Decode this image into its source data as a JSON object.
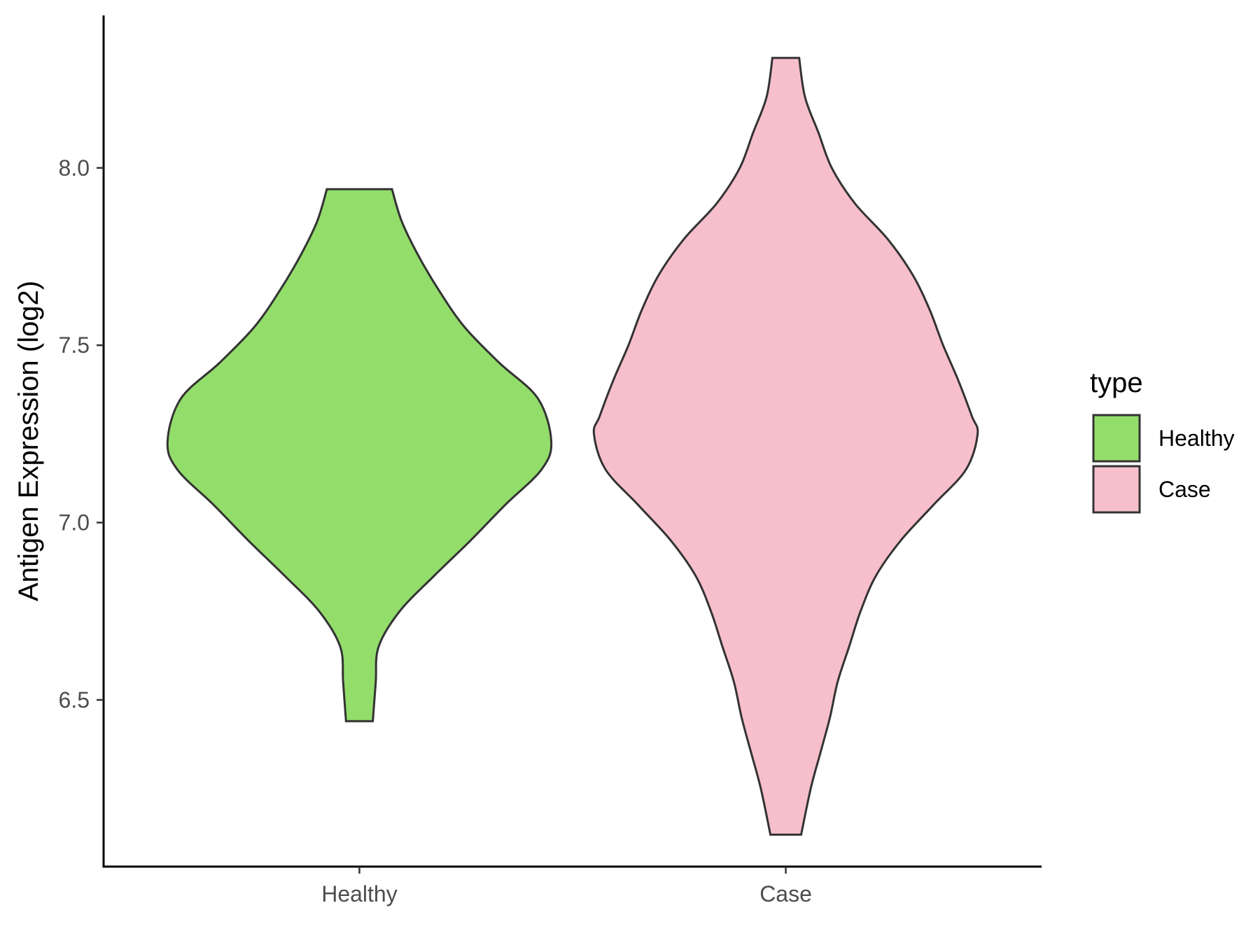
{
  "chart_data": {
    "type": "violin",
    "title": "",
    "xlabel": "",
    "ylabel": "Antigen Expression (log2)",
    "categories": [
      "Healthy",
      "Case"
    ],
    "ylim": [
      6.03,
      8.43
    ],
    "yticks": [
      6.5,
      7.0,
      7.5,
      8.0
    ],
    "ytick_labels": [
      "6.5",
      "7.0",
      "7.5",
      "8.0"
    ],
    "grid": false,
    "legend": {
      "title": "type",
      "position": "right",
      "items": [
        {
          "label": "Healthy",
          "color": "#93dd6b"
        },
        {
          "label": "Case",
          "color": "#f7bfcb"
        }
      ]
    },
    "series": [
      {
        "category": "Healthy",
        "color": "#93dd6b",
        "min": 6.44,
        "max": 7.94,
        "density_profile": [
          [
            7.94,
            0.17
          ],
          [
            7.85,
            0.22
          ],
          [
            7.75,
            0.31
          ],
          [
            7.65,
            0.42
          ],
          [
            7.55,
            0.55
          ],
          [
            7.45,
            0.73
          ],
          [
            7.35,
            0.93
          ],
          [
            7.23,
            1.0
          ],
          [
            7.15,
            0.95
          ],
          [
            7.05,
            0.76
          ],
          [
            6.95,
            0.58
          ],
          [
            6.85,
            0.39
          ],
          [
            6.75,
            0.21
          ],
          [
            6.65,
            0.1
          ],
          [
            6.55,
            0.085
          ],
          [
            6.44,
            0.07
          ]
        ]
      },
      {
        "category": "Case",
        "color": "#f7bfcb",
        "min": 6.12,
        "max": 8.31,
        "density_profile": [
          [
            8.31,
            0.07
          ],
          [
            8.2,
            0.1
          ],
          [
            8.1,
            0.17
          ],
          [
            8.0,
            0.24
          ],
          [
            7.9,
            0.36
          ],
          [
            7.8,
            0.53
          ],
          [
            7.7,
            0.66
          ],
          [
            7.6,
            0.75
          ],
          [
            7.5,
            0.82
          ],
          [
            7.4,
            0.9
          ],
          [
            7.3,
            0.97
          ],
          [
            7.25,
            1.0
          ],
          [
            7.15,
            0.94
          ],
          [
            7.05,
            0.77
          ],
          [
            6.95,
            0.6
          ],
          [
            6.85,
            0.47
          ],
          [
            6.75,
            0.39
          ],
          [
            6.65,
            0.33
          ],
          [
            6.55,
            0.27
          ],
          [
            6.45,
            0.23
          ],
          [
            6.35,
            0.18
          ],
          [
            6.25,
            0.13
          ],
          [
            6.12,
            0.08
          ]
        ]
      }
    ]
  }
}
